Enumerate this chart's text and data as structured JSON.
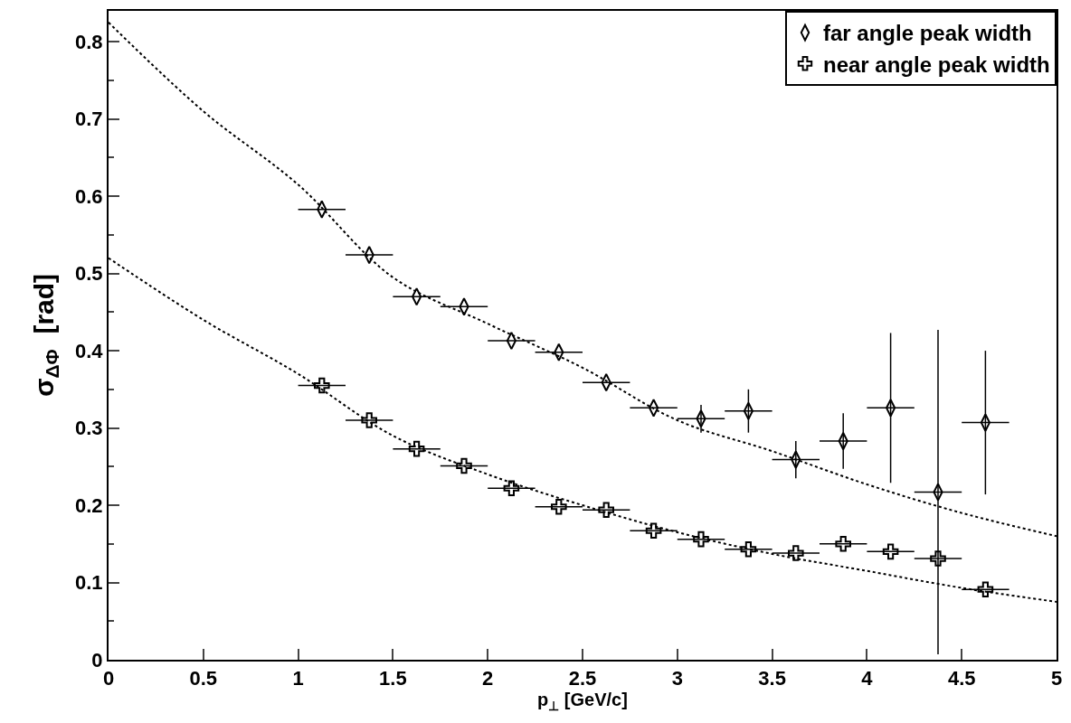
{
  "chart_data": {
    "type": "scatter",
    "xlabel": "p$_{⊥}$ [GeV/c]",
    "ylabel": "σ$_{ΔΦ}$  [rad]",
    "xlim": [
      0,
      5
    ],
    "xticks": [
      0,
      0.5,
      1,
      1.5,
      2,
      2.5,
      3,
      3.5,
      4,
      4.5,
      5
    ],
    "ylim": [
      0,
      0.84
    ],
    "yticks": [
      0,
      0.1,
      0.2,
      0.3,
      0.4,
      0.5,
      0.6,
      0.7,
      0.8
    ],
    "legend": "top right",
    "series": [
      {
        "name": "far angle peak width",
        "color": "#000000",
        "marker": "diamond",
        "x": [
          1.125,
          1.375,
          1.625,
          1.875,
          2.125,
          2.375,
          2.625,
          2.875,
          3.125,
          3.375,
          3.625,
          3.875,
          4.125,
          4.375,
          4.625
        ],
        "values": [
          0.583,
          0.524,
          0.47,
          0.457,
          0.413,
          0.398,
          0.359,
          0.326,
          0.312,
          0.322,
          0.259,
          0.283,
          0.326,
          0.217,
          0.307
        ],
        "errors": [
          null,
          null,
          null,
          null,
          null,
          null,
          null,
          null,
          0.018,
          0.028,
          0.024,
          0.036,
          0.097,
          0.21,
          0.093
        ],
        "xerrors": [
          0.125,
          0.125,
          0.125,
          0.125,
          0.125,
          0.125,
          0.125,
          0.125,
          0.125,
          0.125,
          0.125,
          0.125,
          0.125,
          0.125,
          0.125
        ]
      },
      {
        "name": "near angle peak width",
        "color": "#000000",
        "marker": "cross",
        "x": [
          1.125,
          1.375,
          1.625,
          1.875,
          2.125,
          2.375,
          2.625,
          2.875,
          3.125,
          3.375,
          3.625,
          3.875,
          4.125,
          4.375,
          4.625
        ],
        "values": [
          0.355,
          0.31,
          0.273,
          0.251,
          0.222,
          0.198,
          0.194,
          0.167,
          0.156,
          0.143,
          0.138,
          0.15,
          0.14,
          0.131,
          0.091
        ],
        "xerrors": [
          0.125,
          0.125,
          0.125,
          0.125,
          0.125,
          0.125,
          0.125,
          0.125,
          0.125,
          0.125,
          0.125,
          0.125,
          0.125,
          0.125,
          0.125
        ]
      },
      {
        "type": "line",
        "color": "#000000",
        "line_style": "dotted",
        "marker": "none",
        "x": [
          0,
          0.5,
          1,
          1.5,
          2,
          2.5,
          3,
          3.5,
          4,
          4.5,
          5
        ],
        "values": [
          0.825,
          0.71,
          0.615,
          0.495,
          0.435,
          0.378,
          0.31,
          0.27,
          0.227,
          0.19,
          0.16
        ]
      },
      {
        "type": "line",
        "color": "#000000",
        "line_style": "dotted",
        "marker": "none",
        "x": [
          0,
          0.5,
          1,
          1.5,
          2,
          2.5,
          3,
          3.5,
          4,
          4.5,
          5
        ],
        "values": [
          0.52,
          0.44,
          0.37,
          0.29,
          0.24,
          0.2,
          0.165,
          0.137,
          0.115,
          0.093,
          0.075
        ]
      }
    ]
  }
}
